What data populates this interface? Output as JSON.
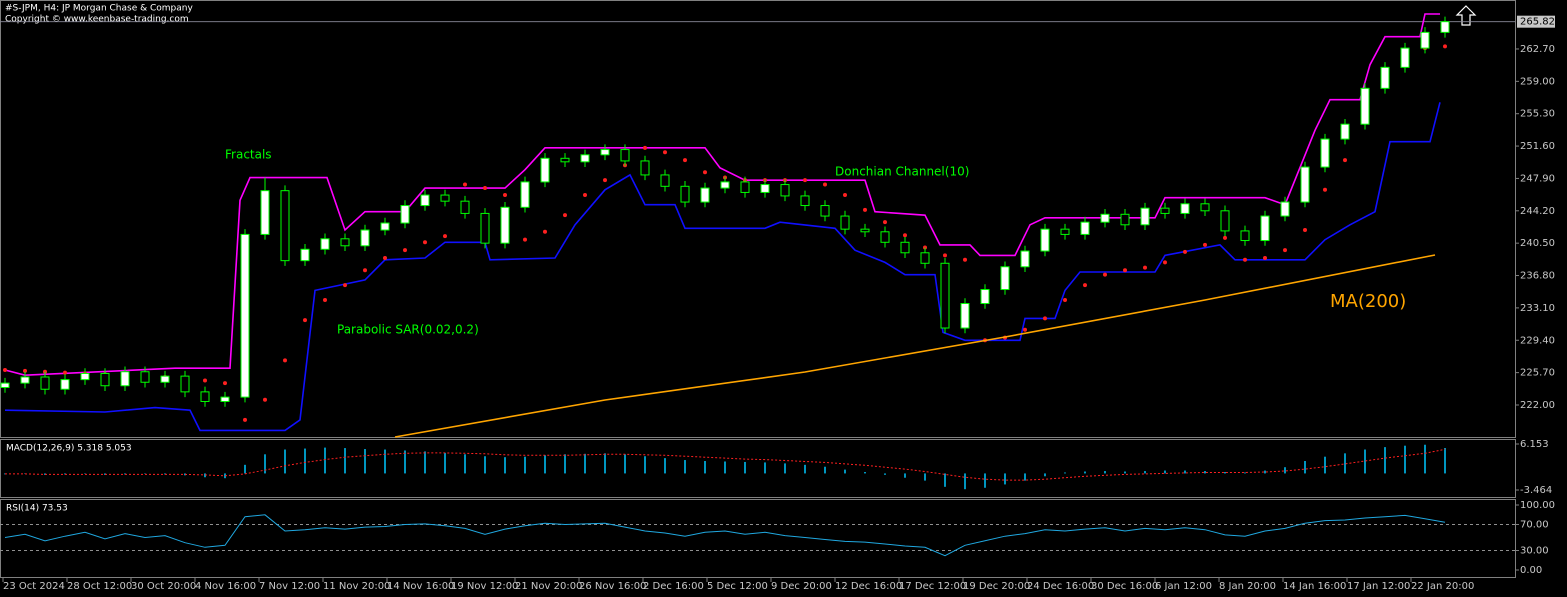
{
  "header": {
    "title": "#S-JPM, H4:  JP Morgan Chase & Company",
    "copyright": "Copyright © www.keenbase-trading.com"
  },
  "chart_data": [
    {
      "type": "candlestick",
      "open": [
        224.0,
        224.5,
        225.2,
        223.8,
        224.9,
        225.6,
        224.2,
        225.8,
        224.6,
        225.3,
        223.5,
        222.4,
        222.9,
        241.5,
        246.5,
        238.5,
        239.8,
        241.0,
        240.2,
        242.0,
        242.8,
        244.8,
        246.0,
        245.3,
        243.9,
        240.5,
        244.6,
        247.5,
        250.2,
        249.8,
        250.6,
        251.2,
        249.9,
        248.3,
        247.0,
        245.2,
        246.8,
        247.5,
        246.3,
        247.2,
        245.9,
        244.8,
        243.6,
        242.1,
        241.8,
        240.6,
        239.4,
        238.2,
        230.8,
        233.6,
        235.2,
        237.8,
        239.6,
        242.1,
        241.5,
        242.9,
        243.8,
        242.6,
        244.5,
        243.9,
        245.0,
        244.2,
        241.9,
        240.8,
        243.6,
        245.2,
        249.2,
        252.4,
        254.1,
        258.2,
        260.6,
        262.8,
        264.6
      ],
      "high": [
        225.1,
        225.8,
        225.8,
        225.5,
        226.2,
        226.2,
        226.4,
        226.4,
        225.9,
        225.9,
        224.1,
        223.5,
        242.1,
        248.0,
        247.1,
        240.4,
        241.6,
        241.6,
        242.6,
        243.4,
        245.4,
        246.6,
        246.6,
        245.9,
        244.5,
        245.2,
        248.1,
        250.8,
        250.8,
        251.2,
        251.8,
        251.8,
        250.5,
        248.9,
        247.6,
        247.4,
        248.1,
        248.1,
        247.8,
        247.8,
        246.5,
        245.4,
        244.2,
        242.7,
        242.4,
        241.2,
        240.0,
        238.8,
        234.2,
        235.8,
        238.4,
        240.2,
        242.7,
        242.7,
        243.5,
        244.4,
        244.4,
        245.1,
        245.1,
        245.6,
        245.6,
        244.8,
        242.5,
        244.2,
        245.8,
        249.8,
        253.0,
        254.7,
        258.8,
        261.2,
        263.4,
        265.2,
        266.4
      ],
      "low": [
        223.4,
        223.9,
        223.2,
        223.2,
        224.3,
        223.6,
        223.6,
        224.0,
        224.0,
        222.9,
        221.8,
        221.8,
        222.3,
        240.9,
        237.9,
        237.9,
        239.2,
        239.6,
        239.6,
        241.4,
        242.2,
        244.2,
        244.7,
        243.3,
        239.9,
        239.9,
        244.0,
        246.9,
        249.2,
        249.2,
        250.0,
        249.3,
        247.7,
        246.4,
        244.6,
        244.6,
        246.2,
        245.7,
        245.7,
        245.3,
        244.2,
        243.0,
        241.5,
        241.2,
        240.0,
        238.8,
        237.6,
        230.2,
        230.2,
        233.0,
        234.6,
        237.2,
        239.0,
        240.9,
        240.9,
        242.3,
        242.0,
        242.0,
        243.3,
        243.3,
        243.6,
        241.3,
        240.2,
        240.2,
        243.0,
        244.6,
        248.6,
        251.8,
        253.5,
        257.6,
        260.0,
        262.2,
        264.0
      ],
      "close": [
        224.5,
        225.2,
        223.8,
        224.9,
        225.6,
        224.2,
        225.8,
        224.6,
        225.3,
        223.5,
        222.4,
        222.9,
        241.5,
        246.5,
        238.5,
        239.8,
        241.0,
        240.2,
        242.0,
        242.8,
        244.8,
        246.0,
        245.3,
        243.9,
        240.5,
        244.6,
        247.5,
        250.2,
        249.8,
        250.6,
        251.2,
        249.9,
        248.3,
        247.0,
        245.2,
        246.8,
        247.5,
        246.3,
        247.2,
        245.9,
        244.8,
        243.6,
        242.1,
        241.8,
        240.6,
        239.4,
        238.2,
        230.8,
        233.6,
        235.2,
        237.8,
        239.6,
        242.1,
        241.5,
        242.9,
        243.8,
        242.6,
        244.5,
        243.9,
        245.0,
        244.2,
        241.9,
        240.8,
        243.6,
        245.2,
        249.2,
        252.4,
        254.1,
        258.2,
        260.6,
        262.8,
        264.6,
        265.82
      ],
      "up_color": "#ffffff",
      "down_color": "#000000",
      "wick_color": "#00ff00",
      "overlays": [
        {
          "type": "line",
          "color": "#ff00ff",
          "x": [
            0,
            1,
            8.5,
            11.25,
            11.75,
            12.25,
            16.1,
            17,
            18,
            20,
            21,
            25,
            26,
            27,
            35,
            35.75,
            37,
            43,
            43.5,
            46,
            46.75,
            48.25,
            48.75,
            50.5,
            51.25,
            52,
            57.5,
            58,
            63,
            64,
            65.5,
            66.25,
            67.75,
            68.25,
            69,
            70.75,
            71,
            71.75
          ],
          "values": [
            226.0,
            225.4,
            226.2,
            226.2,
            245.4,
            248.0,
            248.0,
            242.0,
            244.1,
            244.1,
            246.8,
            246.8,
            248.9,
            251.4,
            251.4,
            249.1,
            247.7,
            247.7,
            244.1,
            243.7,
            240.3,
            240.3,
            239.1,
            239.1,
            242.6,
            243.4,
            243.4,
            245.7,
            245.7,
            244.9,
            253.4,
            256.9,
            256.9,
            260.9,
            264.1,
            264.1,
            266.7,
            266.7
          ]
        },
        {
          "type": "line",
          "color": "#1010ff",
          "x": [
            0,
            5,
            7.5,
            9.25,
            9.75,
            14,
            14.75,
            15.5,
            18,
            19,
            21,
            22,
            24,
            24.25,
            27.5,
            28.5,
            30,
            31.25,
            32,
            33.5,
            34,
            38,
            38.75,
            41.5,
            42.5,
            44,
            45,
            46.5,
            46.9,
            48,
            50.75,
            51,
            52.5,
            53,
            53.75,
            57.5,
            58,
            60.75,
            61.5,
            65,
            66,
            67.25,
            68.5,
            69.25,
            70.5,
            71.25,
            71.75
          ],
          "values": [
            221.4,
            221.2,
            221.7,
            221.4,
            219.1,
            219.1,
            220.3,
            235.1,
            236.3,
            238.6,
            238.8,
            240.6,
            240.6,
            238.6,
            238.8,
            242.6,
            246.6,
            248.3,
            244.9,
            244.9,
            242.2,
            242.2,
            242.9,
            242.2,
            239.7,
            238.3,
            236.9,
            236.9,
            230.3,
            229.4,
            229.4,
            231.9,
            231.9,
            235.1,
            237.2,
            237.2,
            239.1,
            240.3,
            238.6,
            238.6,
            240.9,
            242.6,
            244.1,
            252.1,
            252.1,
            252.1,
            256.6
          ]
        },
        {
          "type": "dots",
          "color": "#ff2020",
          "values": [
            226.0,
            225.9,
            225.8,
            225.7,
            225.6,
            225.5,
            225.4,
            225.3,
            225.2,
            225.0,
            224.8,
            224.5,
            220.3,
            222.6,
            227.1,
            231.7,
            234.0,
            235.7,
            237.4,
            238.8,
            239.7,
            240.6,
            241.3,
            247.2,
            246.8,
            246.0,
            240.9,
            241.8,
            243.7,
            246.0,
            247.7,
            249.4,
            251.4,
            250.9,
            250.0,
            248.6,
            248.0,
            247.7,
            247.7,
            247.7,
            247.7,
            247.2,
            246.0,
            244.3,
            242.9,
            241.4,
            240.0,
            239.1,
            238.6,
            229.4,
            229.7,
            230.6,
            231.9,
            234.0,
            235.7,
            236.9,
            237.4,
            237.7,
            238.3,
            239.5,
            240.3,
            241.1,
            238.6,
            238.8,
            239.7,
            242.0,
            246.6,
            250.0,
            254.6,
            258.6,
            261.4,
            262.8,
            263.0
          ]
        },
        {
          "type": "line",
          "color": "#ffa500",
          "x": [
            19.5,
            30,
            40,
            50,
            60,
            71.5
          ],
          "values": [
            218.34,
            222.57,
            225.77,
            229.77,
            234.0,
            239.15
          ]
        }
      ],
      "annotations": [
        {
          "text": "Fractals",
          "color": "#00ff00"
        },
        {
          "text": "Donchian Channel(10)",
          "color": "#00ff00"
        },
        {
          "text": "Parabolic SAR(0.02,0.2)",
          "color": "#00ff00"
        },
        {
          "text": "MA(200)",
          "color": "#ffa500"
        }
      ],
      "last_price": 265.82,
      "xlim": [
        -0.25,
        75.5
      ],
      "xticks": [
        {
          "value": -0.1,
          "label": "23 Oct 2024"
        },
        {
          "value": 3.1,
          "label": "28 Oct 12:00"
        },
        {
          "value": 6.3,
          "label": "30 Oct 20:00"
        },
        {
          "value": 9.5,
          "label": "4 Nov 16:00"
        },
        {
          "value": 12.7,
          "label": "7 Nov 12:00"
        },
        {
          "value": 15.9,
          "label": "11 Nov 20:00"
        },
        {
          "value": 19.1,
          "label": "14 Nov 16:00"
        },
        {
          "value": 22.3,
          "label": "19 Nov 12:00"
        },
        {
          "value": 25.5,
          "label": "21 Nov 20:00"
        },
        {
          "value": 28.7,
          "label": "26 Nov 16:00"
        },
        {
          "value": 31.9,
          "label": "2 Dec 16:00"
        },
        {
          "value": 35.1,
          "label": "5 Dec 12:00"
        },
        {
          "value": 38.3,
          "label": "9 Dec 20:00"
        },
        {
          "value": 41.5,
          "label": "12 Dec 16:00"
        },
        {
          "value": 44.7,
          "label": "17 Dec 12:00"
        },
        {
          "value": 47.9,
          "label": "19 Dec 20:00"
        },
        {
          "value": 51.1,
          "label": "24 Dec 16:00"
        },
        {
          "value": 54.3,
          "label": "30 Dec 16:00"
        },
        {
          "value": 57.5,
          "label": "6 Jan 12:00"
        },
        {
          "value": 60.7,
          "label": "8 Jan 20:00"
        },
        {
          "value": 63.9,
          "label": "14 Jan 16:00"
        },
        {
          "value": 67.1,
          "label": "17 Jan 12:00"
        },
        {
          "value": 70.3,
          "label": "22 Jan 20:00"
        }
      ],
      "ylim": [
        218.34,
        268.07
      ],
      "yticks": [
        {
          "value": 222,
          "label": "222.00"
        },
        {
          "value": 225.7,
          "label": "225.70"
        },
        {
          "value": 229.4,
          "label": "229.40"
        },
        {
          "value": 233.1,
          "label": "233.10"
        },
        {
          "value": 236.8,
          "label": "236.80"
        },
        {
          "value": 240.5,
          "label": "240.50"
        },
        {
          "value": 244.2,
          "label": "244.20"
        },
        {
          "value": 247.9,
          "label": "247.90"
        },
        {
          "value": 251.6,
          "label": "251.60"
        },
        {
          "value": 255.3,
          "label": "255.30"
        },
        {
          "value": 259,
          "label": "259.00"
        },
        {
          "value": 262.7,
          "label": "262.70"
        }
      ]
    },
    {
      "type": "macd",
      "title": "MACD(12,26,9) 5.318 5.053",
      "values": [
        -0.2,
        -0.1,
        -0.3,
        -0.2,
        -0.1,
        -0.3,
        -0.2,
        -0.1,
        -0.2,
        -0.4,
        -0.8,
        -1.0,
        1.8,
        4.0,
        5.0,
        5.2,
        5.4,
        5.3,
        5.1,
        5.0,
        4.8,
        4.6,
        4.3,
        4.0,
        3.6,
        3.4,
        3.5,
        3.8,
        4.0,
        4.1,
        4.2,
        4.0,
        3.6,
        3.2,
        2.8,
        2.6,
        2.5,
        2.4,
        2.3,
        2.1,
        1.8,
        1.4,
        0.8,
        0.3,
        -0.3,
        -0.9,
        -1.5,
        -2.8,
        -3.3,
        -3.0,
        -2.3,
        -1.5,
        -0.6,
        0.2,
        0.4,
        0.5,
        0.4,
        0.5,
        0.6,
        0.6,
        0.5,
        0.3,
        0.2,
        0.6,
        1.3,
        2.6,
        3.5,
        4.2,
        5.0,
        5.5,
        5.8,
        6.0,
        5.318
      ],
      "signal": [
        -0.1,
        -0.1,
        -0.2,
        -0.2,
        -0.2,
        -0.2,
        -0.2,
        -0.2,
        -0.2,
        -0.2,
        -0.3,
        -0.5,
        -0.1,
        0.7,
        1.6,
        2.3,
        2.9,
        3.4,
        3.7,
        4.0,
        4.2,
        4.3,
        4.3,
        4.2,
        4.1,
        3.9,
        3.8,
        3.8,
        3.8,
        3.9,
        4.0,
        4.0,
        3.9,
        3.8,
        3.6,
        3.4,
        3.2,
        3.0,
        2.9,
        2.7,
        2.5,
        2.3,
        2.0,
        1.7,
        1.3,
        0.9,
        0.4,
        -0.2,
        -0.8,
        -1.2,
        -1.4,
        -1.4,
        -1.2,
        -0.9,
        -0.6,
        -0.4,
        -0.2,
        -0.1,
        0.0,
        0.1,
        0.2,
        0.2,
        0.2,
        0.3,
        0.5,
        0.9,
        1.4,
        2.0,
        2.6,
        3.2,
        3.7,
        4.2,
        5.053
      ],
      "color": "#00c8ff",
      "signal_color": "#ff2020",
      "ylim": [
        -4.93,
        6.99
      ],
      "yticks": [
        6.153,
        -3.464
      ]
    },
    {
      "type": "line",
      "title": "RSI(14) 73.53",
      "values": [
        50,
        55,
        45,
        52,
        58,
        48,
        56,
        50,
        53,
        42,
        35,
        38,
        82,
        85,
        60,
        62,
        65,
        63,
        66,
        67,
        70,
        71,
        68,
        64,
        55,
        63,
        68,
        72,
        70,
        71,
        72,
        66,
        60,
        57,
        52,
        58,
        60,
        55,
        58,
        53,
        50,
        47,
        44,
        43,
        40,
        37,
        35,
        22,
        38,
        45,
        52,
        56,
        62,
        60,
        63,
        65,
        60,
        64,
        62,
        65,
        62,
        54,
        52,
        60,
        64,
        72,
        76,
        77,
        80,
        82,
        84,
        79,
        73.53
      ],
      "color": "#20a8e0",
      "levels": [
        70,
        30
      ],
      "ylim": [
        -12.3,
        107.7
      ],
      "yticks": [
        {
          "value": 100,
          "label": "100.00"
        },
        {
          "value": 70,
          "label": "70.00"
        },
        {
          "value": 30,
          "label": "30.00"
        },
        {
          "value": 0,
          "label": "0.00"
        }
      ]
    }
  ]
}
